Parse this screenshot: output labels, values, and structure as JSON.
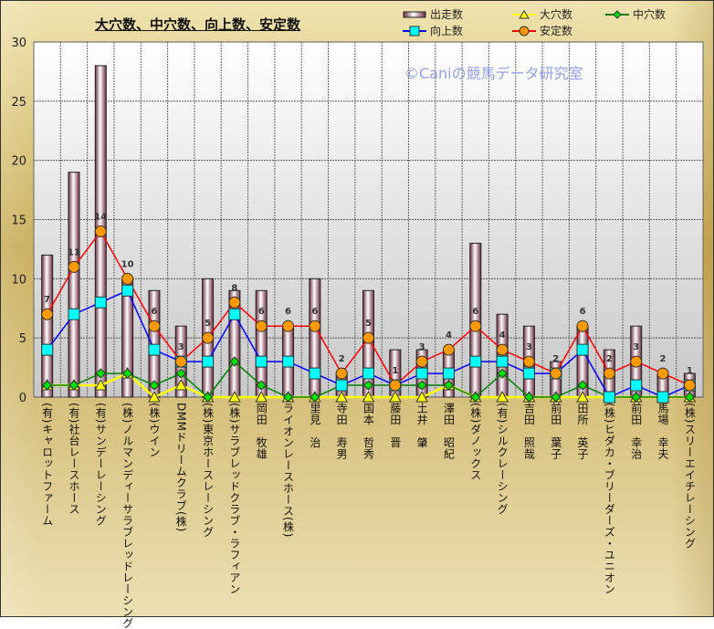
{
  "chart_data": {
    "type": "bar",
    "title": "大穴数、中穴数、向上数、安定数",
    "watermark": "©Caniの競馬データ研究室",
    "ylim": [
      0,
      30
    ],
    "yticks": [
      0,
      5,
      10,
      15,
      20,
      25,
      30
    ],
    "grid": true,
    "legend_placement": "top-right",
    "categories": [
      "(有)キャロットファーム",
      "(有)社台レースホース",
      "(有)サンデーレーシング",
      "(株)ノルマンディーサラブレッドレーシング",
      "(株)ウイン",
      "DMMドリームクラブ(株)",
      "(株)東京ホースレーシング",
      "(株)サラブレッドクラブ・ラフィアン",
      "岡田　牧雄",
      "ライオンレースホース(株)",
      "里見　治",
      "寺田　寿男",
      "国本　哲秀",
      "藤田　晋",
      "土井　肇",
      "澤田　昭紀",
      "(株)ダノックス",
      "(有)シルクレーシング",
      "吉田　照哉",
      "前田　葉子",
      "田所　英子",
      "(株)ヒダカ・ブリーダーズ・ユニオン",
      "前田　幸治",
      "馬場　幸夫",
      "(株)スリーエイチレーシング"
    ],
    "series": [
      {
        "name": "出走数",
        "kind": "bar",
        "color": "#e8c8d4",
        "values": [
          12,
          19,
          28,
          10,
          9,
          6,
          10,
          9,
          9,
          6,
          10,
          2,
          9,
          4,
          4,
          4,
          13,
          7,
          6,
          3,
          6,
          4,
          6,
          2,
          2
        ]
      },
      {
        "name": "大穴数",
        "kind": "line",
        "color": "#ffff00",
        "marker": "triangle",
        "values": [
          1,
          1,
          1,
          2,
          0,
          1,
          0,
          0,
          0,
          0,
          0,
          0,
          0,
          0,
          0,
          1,
          0,
          0,
          0,
          0,
          0,
          0,
          0,
          0,
          0
        ]
      },
      {
        "name": "中穴数",
        "kind": "line",
        "color": "#008000",
        "marker": "diamond",
        "values": [
          1,
          1,
          2,
          2,
          1,
          2,
          0,
          3,
          1,
          0,
          0,
          1,
          1,
          1,
          1,
          1,
          0,
          2,
          0,
          0,
          1,
          0,
          0,
          0,
          0
        ]
      },
      {
        "name": "向上数",
        "kind": "line",
        "color": "#0000ff",
        "marker": "square",
        "values": [
          4,
          7,
          8,
          9,
          4,
          3,
          3,
          7,
          3,
          3,
          2,
          1,
          2,
          1,
          2,
          2,
          3,
          3,
          2,
          2,
          4,
          0,
          1,
          0,
          1
        ]
      },
      {
        "name": "安定数",
        "kind": "line",
        "color": "#ff0000",
        "marker": "circle",
        "values": [
          7,
          11,
          14,
          10,
          6,
          3,
          5,
          8,
          6,
          6,
          6,
          2,
          5,
          1,
          3,
          4,
          6,
          4,
          3,
          2,
          6,
          2,
          3,
          2,
          1
        ],
        "data_labels": true
      }
    ]
  }
}
